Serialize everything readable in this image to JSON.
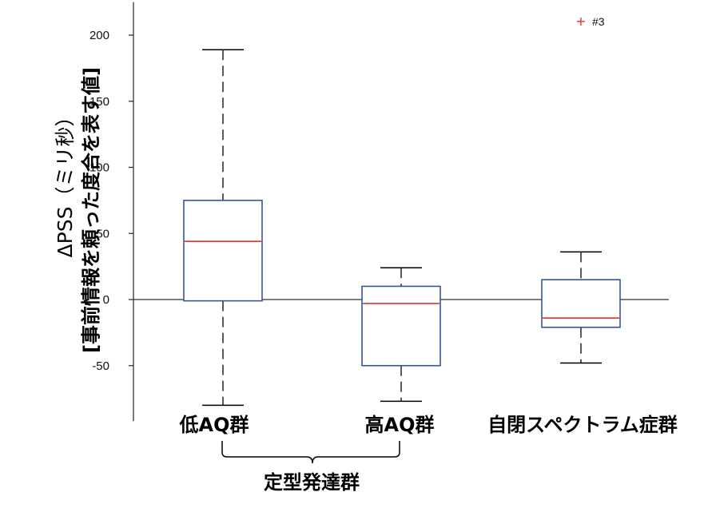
{
  "chart_data": {
    "type": "box",
    "ylabel": "ΔPSS（ミリ秒）",
    "ylabel_sub": "[事前情報を頼った度合を表す値]",
    "yticks": [
      -50,
      0,
      50,
      100,
      150,
      200
    ],
    "ylim": [
      -92,
      225
    ],
    "reference_line_y": 0,
    "categories": [
      "低AQ群",
      "高AQ群",
      "自閉スペクトラム症群"
    ],
    "boxes": [
      {
        "category": "低AQ群",
        "whisker_low": -80,
        "q1": -1,
        "median": 44,
        "q3": 75,
        "whisker_high": 189
      },
      {
        "category": "高AQ群",
        "whisker_low": -77,
        "q1": -50,
        "median": -3,
        "q3": 10,
        "whisker_high": 24
      },
      {
        "category": "自閉スペクトラム症群",
        "whisker_low": -48,
        "q1": -21,
        "median": -14,
        "q3": 15,
        "whisker_high": 36
      }
    ],
    "outliers": [
      {
        "marker": "+",
        "label": "#3"
      }
    ],
    "group_bracket": {
      "label": "定型発達群",
      "spans": [
        "低AQ群",
        "高AQ群"
      ]
    },
    "colors": {
      "box": "#3355a0",
      "median": "#e03030",
      "outlier": "#e03030",
      "axis": "#333333"
    }
  }
}
